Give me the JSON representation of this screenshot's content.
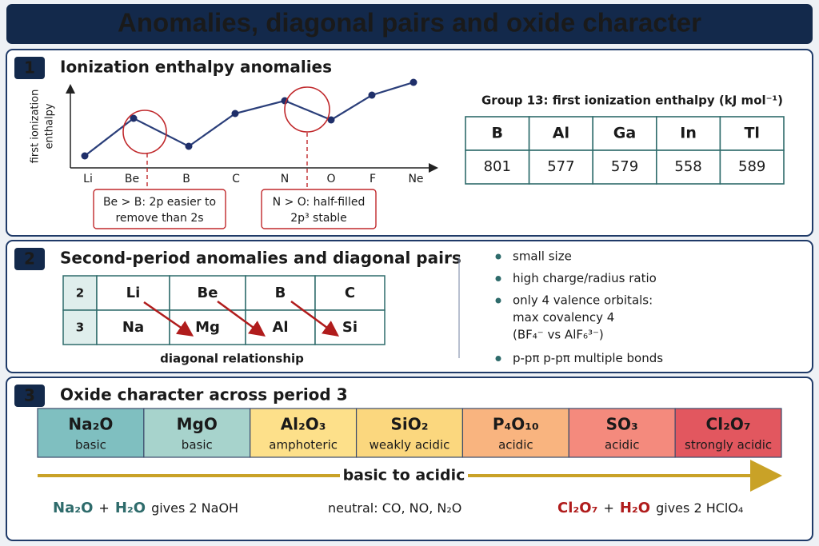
{
  "title": "Anomalies, diagonal pairs and oxide character",
  "section1": {
    "number": 1,
    "heading": "Ionization enthalpy anomalies",
    "y_label": [
      "first ionization",
      "enthalpy"
    ],
    "elements": [
      "Li",
      "Be",
      "B",
      "C",
      "N",
      "O",
      "F",
      "Ne"
    ],
    "callouts": [
      [
        "Be > B: 2p easier to",
        "remove than 2s"
      ],
      [
        "N > O: half-filled",
        "2p³ stable"
      ]
    ],
    "table": {
      "caption": "Group 13: first ionization enthalpy (kJ mol⁻¹)",
      "header": [
        "B",
        "Al",
        "Ga",
        "In",
        "Tl"
      ],
      "values": [
        801,
        577,
        579,
        558,
        589
      ]
    }
  },
  "section2": {
    "number": 2,
    "heading": "Second-period anomalies and diagonal pairs",
    "table": {
      "periods": [
        2,
        3
      ],
      "rows": [
        [
          "Li",
          "Be",
          "B",
          "C"
        ],
        [
          "Na",
          "Mg",
          "Al",
          "Si"
        ]
      ]
    },
    "caption": "diagonal relationship",
    "bullets": [
      [
        "small size"
      ],
      [
        "high charge/radius ratio"
      ],
      [
        "only 4 valence orbitals:",
        "max covalency 4",
        "(BF₄⁻ vs AlF₆³⁻)"
      ],
      [
        "p-pπ p-pπ multiple bonds"
      ]
    ]
  },
  "section3": {
    "number": 3,
    "heading": "Oxide character across period 3",
    "oxides": [
      {
        "formula": "Na₂O",
        "character": "basic"
      },
      {
        "formula": "MgO",
        "character": "basic"
      },
      {
        "formula": "Al₂O₃",
        "character": "amphoteric"
      },
      {
        "formula": "SiO₂",
        "character": "weakly acidic"
      },
      {
        "formula": "P₄O₁₀",
        "character": "acidic"
      },
      {
        "formula": "SO₃",
        "character": "acidic"
      },
      {
        "formula": "Cl₂O₇",
        "character": "strongly acidic"
      }
    ],
    "trend": "basic to acidic",
    "notes": [
      [
        "Na₂O",
        "+",
        "H₂O",
        "gives 2 NaOH"
      ],
      [
        "neutral: CO, NO, N₂O"
      ],
      [
        "Cl₂O₇",
        "+",
        "H₂O",
        "gives 2 HClO₄"
      ]
    ]
  }
}
